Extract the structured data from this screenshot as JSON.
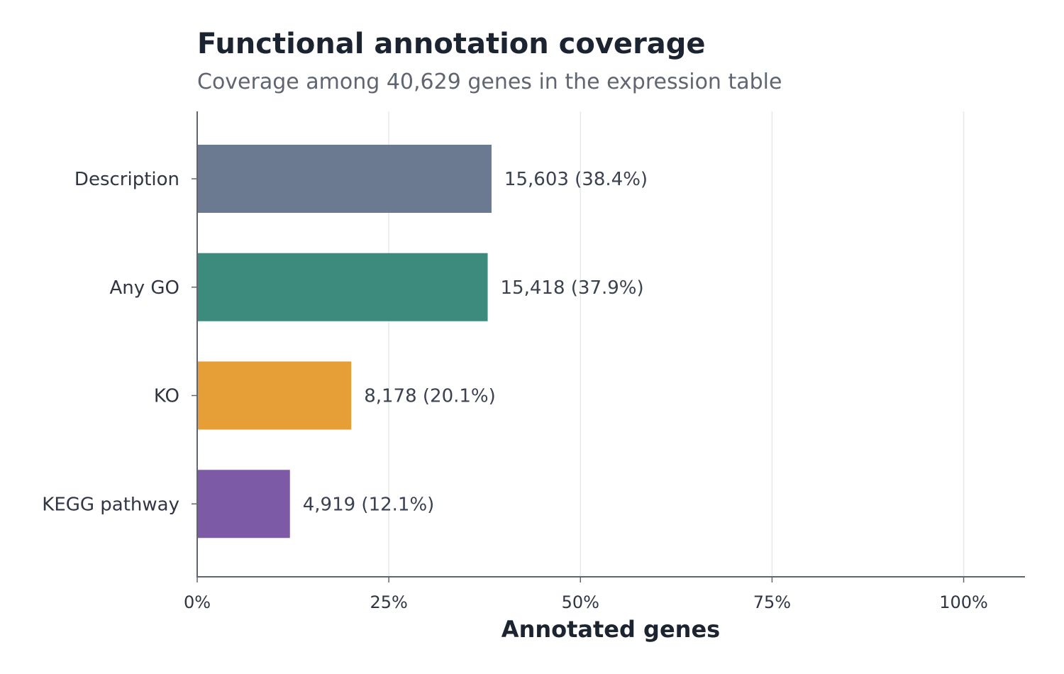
{
  "chart_data": {
    "type": "bar",
    "orientation": "horizontal",
    "title": "Functional annotation coverage",
    "subtitle": "Coverage among 40,629 genes in the expression table",
    "xlabel": "Annotated genes",
    "ylabel": "",
    "xlim": [
      0,
      108
    ],
    "xticks": [
      0,
      25,
      50,
      75,
      100
    ],
    "xtick_labels": [
      "0%",
      "25%",
      "50%",
      "75%",
      "100%"
    ],
    "grid": "vertical",
    "categories": [
      "Description",
      "Any GO",
      "KO",
      "KEGG pathway"
    ],
    "values": [
      38.4,
      37.9,
      20.1,
      12.1
    ],
    "counts": [
      "15,603",
      "15,418",
      "8,178",
      "4,919"
    ],
    "value_labels": [
      "15,603 (38.4%)",
      "15,418 (37.9%)",
      "8,178 (20.1%)",
      "4,919 (12.1%)"
    ],
    "colors": [
      "#6b7a90",
      "#3d8b7c",
      "#e59f36",
      "#7d5aa6"
    ]
  }
}
